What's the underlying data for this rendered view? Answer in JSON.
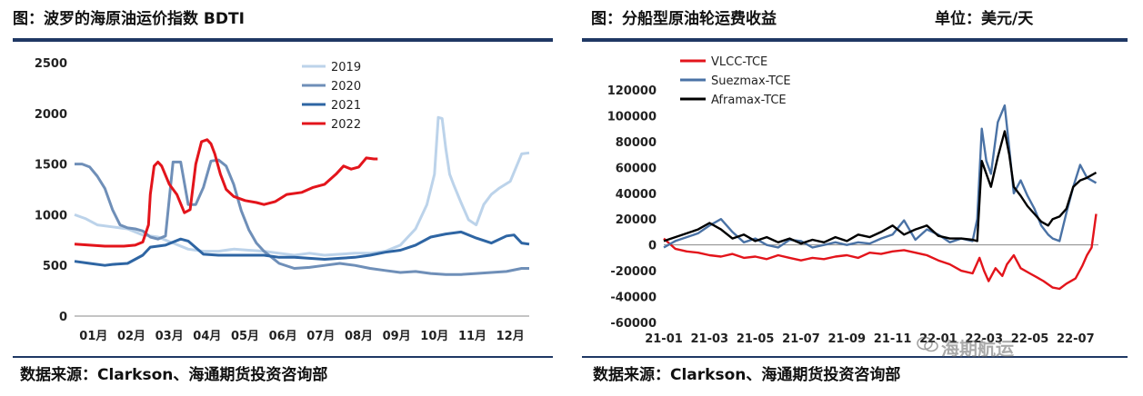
{
  "left": {
    "title": "图：波罗的海原油运价指数 BDTI",
    "source": "数据来源：Clarkson、海通期货投资咨询部"
  },
  "right": {
    "title": "图：分船型原油轮运费收益",
    "unit": "单位：美元/天",
    "source": "数据来源：Clarkson、海通期货投资咨询部"
  },
  "watermark": {
    "text": "海期航运",
    "icon": "wechat-icon"
  },
  "chart_data": [
    {
      "type": "line",
      "x_ticks": [
        "01月",
        "02月",
        "03月",
        "04月",
        "05月",
        "06月",
        "07月",
        "08月",
        "09月",
        "10月",
        "11月",
        "12月"
      ],
      "y_ticks": [
        "0",
        "500",
        "1000",
        "1500",
        "2000",
        "2500"
      ],
      "ylim": [
        0,
        2500
      ],
      "xlim": [
        1,
        13
      ],
      "legend_position": "top-center",
      "series": [
        {
          "name": "2019",
          "color": "#bcd3ea",
          "x": [
            1,
            1.3,
            1.6,
            2,
            2.4,
            2.8,
            3.2,
            3.6,
            4,
            4.4,
            4.8,
            5.2,
            5.6,
            6,
            6.4,
            6.8,
            7.2,
            7.6,
            8,
            8.4,
            8.8,
            9.2,
            9.6,
            10,
            10.3,
            10.5,
            10.6,
            10.7,
            10.8,
            10.9,
            11,
            11.2,
            11.4,
            11.6,
            11.8,
            12,
            12.2,
            12.5,
            12.8,
            13
          ],
          "y": [
            1000,
            960,
            900,
            880,
            860,
            800,
            780,
            720,
            660,
            640,
            640,
            660,
            650,
            640,
            620,
            600,
            620,
            600,
            610,
            620,
            620,
            640,
            700,
            860,
            1100,
            1400,
            1960,
            1950,
            1650,
            1400,
            1300,
            1120,
            950,
            900,
            1100,
            1200,
            1260,
            1330,
            1600,
            1610
          ]
        },
        {
          "name": "2020",
          "color": "#6f8fb8",
          "x": [
            1,
            1.2,
            1.4,
            1.6,
            1.8,
            2,
            2.2,
            2.4,
            2.6,
            2.8,
            3,
            3.2,
            3.4,
            3.6,
            3.8,
            4,
            4.2,
            4.4,
            4.6,
            4.8,
            5,
            5.2,
            5.4,
            5.6,
            5.8,
            6,
            6.4,
            6.8,
            7.2,
            7.6,
            8,
            8.4,
            8.8,
            9.2,
            9.6,
            10,
            10.4,
            10.8,
            11.2,
            11.6,
            12,
            12.4,
            12.8,
            13
          ],
          "y": [
            1500,
            1500,
            1470,
            1380,
            1260,
            1050,
            900,
            870,
            860,
            840,
            780,
            760,
            790,
            1520,
            1520,
            1100,
            1100,
            1270,
            1530,
            1540,
            1480,
            1300,
            1040,
            850,
            720,
            640,
            520,
            470,
            480,
            500,
            520,
            500,
            470,
            450,
            430,
            440,
            420,
            410,
            410,
            420,
            430,
            440,
            470,
            470
          ]
        },
        {
          "name": "2021",
          "color": "#2e65a3",
          "x": [
            1,
            1.4,
            1.8,
            2,
            2.4,
            2.8,
            3,
            3.4,
            3.8,
            4,
            4.4,
            4.8,
            5.2,
            5.6,
            6,
            6.4,
            6.8,
            7.2,
            7.6,
            8,
            8.4,
            8.8,
            9.2,
            9.6,
            10,
            10.4,
            10.8,
            11.2,
            11.6,
            12,
            12.4,
            12.6,
            12.8,
            13
          ],
          "y": [
            540,
            520,
            500,
            510,
            520,
            600,
            680,
            700,
            760,
            740,
            610,
            600,
            600,
            600,
            600,
            580,
            580,
            570,
            560,
            570,
            580,
            600,
            630,
            650,
            700,
            780,
            810,
            830,
            770,
            720,
            790,
            800,
            720,
            710
          ]
        },
        {
          "name": "2022",
          "color": "#e3141b",
          "x": [
            1,
            1.4,
            1.8,
            2,
            2.3,
            2.6,
            2.8,
            2.95,
            3,
            3.1,
            3.2,
            3.3,
            3.5,
            3.7,
            3.9,
            4.05,
            4.2,
            4.35,
            4.5,
            4.6,
            4.7,
            4.85,
            5,
            5.2,
            5.5,
            5.8,
            6,
            6.3,
            6.6,
            7,
            7.3,
            7.6,
            7.9,
            8.1,
            8.3,
            8.5,
            8.7,
            8.9,
            9
          ],
          "y": [
            710,
            700,
            690,
            690,
            690,
            700,
            730,
            900,
            1200,
            1480,
            1520,
            1480,
            1300,
            1200,
            1020,
            1050,
            1500,
            1720,
            1740,
            1700,
            1600,
            1400,
            1250,
            1180,
            1140,
            1120,
            1100,
            1130,
            1200,
            1220,
            1270,
            1300,
            1400,
            1480,
            1450,
            1470,
            1560,
            1550,
            1550
          ]
        }
      ]
    },
    {
      "type": "line",
      "x_ticks": [
        "21-01",
        "21-03",
        "21-05",
        "21-07",
        "21-09",
        "21-11",
        "22-01",
        "22-03",
        "22-05",
        "22-07"
      ],
      "y_ticks": [
        "-60000",
        "-40000",
        "-20000",
        "0",
        "20000",
        "40000",
        "60000",
        "80000",
        "100000",
        "120000"
      ],
      "ylim": [
        -60000,
        120000
      ],
      "xlim": [
        0,
        19
      ],
      "legend_position": "top-left",
      "series": [
        {
          "name": "VLCC-TCE",
          "color": "#e3141b",
          "x": [
            0,
            0.5,
            1,
            1.5,
            2,
            2.5,
            3,
            3.5,
            4,
            4.5,
            5,
            5.5,
            6,
            6.5,
            7,
            7.5,
            8,
            8.5,
            9,
            9.5,
            10,
            10.5,
            11,
            11.5,
            12,
            12.5,
            13,
            13.5,
            13.8,
            14,
            14.2,
            14.5,
            14.8,
            15,
            15.3,
            15.6,
            16,
            16.3,
            16.6,
            17,
            17.3,
            17.6,
            18,
            18.3,
            18.5,
            18.7,
            18.9
          ],
          "y": [
            5000,
            -3000,
            -5000,
            -6000,
            -8000,
            -9000,
            -7000,
            -10000,
            -9000,
            -11000,
            -8000,
            -10000,
            -12000,
            -10000,
            -11000,
            -9000,
            -8000,
            -10000,
            -6000,
            -7000,
            -5000,
            -4000,
            -6000,
            -8000,
            -12000,
            -15000,
            -20000,
            -22000,
            -10000,
            -20000,
            -28000,
            -18000,
            -24000,
            -15000,
            -8000,
            -18000,
            -22000,
            -25000,
            -28000,
            -33000,
            -34000,
            -30000,
            -26000,
            -16000,
            -8000,
            -2000,
            24000
          ]
        },
        {
          "name": "Suezmax-TCE",
          "color": "#4a72a5",
          "x": [
            0,
            0.5,
            1,
            1.5,
            2,
            2.5,
            3,
            3.5,
            4,
            4.5,
            5,
            5.5,
            6,
            6.5,
            7,
            7.5,
            8,
            8.5,
            9,
            9.5,
            10,
            10.5,
            11,
            11.5,
            12,
            12.5,
            13,
            13.5,
            13.7,
            13.9,
            14.1,
            14.3,
            14.6,
            14.9,
            15.1,
            15.3,
            15.6,
            15.9,
            16.2,
            16.5,
            16.8,
            17,
            17.3,
            17.6,
            17.9,
            18.2,
            18.5,
            18.9
          ],
          "y": [
            -2000,
            3000,
            6000,
            9000,
            15000,
            20000,
            10000,
            2000,
            5000,
            0,
            -2000,
            4000,
            3000,
            -2000,
            0,
            2000,
            0,
            2000,
            1000,
            5000,
            8000,
            19000,
            4000,
            12000,
            8000,
            2000,
            5000,
            3000,
            20000,
            90000,
            65000,
            55000,
            95000,
            108000,
            75000,
            40000,
            50000,
            38000,
            28000,
            15000,
            8000,
            5000,
            3000,
            25000,
            45000,
            62000,
            52000,
            48000
          ]
        },
        {
          "name": "Aframax-TCE",
          "color": "#000000",
          "x": [
            0,
            0.5,
            1,
            1.5,
            2,
            2.5,
            3,
            3.5,
            4,
            4.5,
            5,
            5.5,
            6,
            6.5,
            7,
            7.5,
            8,
            8.5,
            9,
            9.5,
            10,
            10.5,
            11,
            11.5,
            12,
            12.5,
            13,
            13.5,
            13.7,
            13.9,
            14.1,
            14.3,
            14.6,
            14.9,
            15.1,
            15.3,
            15.6,
            15.9,
            16.2,
            16.5,
            16.8,
            17,
            17.3,
            17.6,
            17.9,
            18.2,
            18.5,
            18.9
          ],
          "y": [
            3000,
            6000,
            9000,
            12000,
            17000,
            12000,
            5000,
            8000,
            3000,
            6000,
            2000,
            5000,
            1000,
            4000,
            2000,
            6000,
            3000,
            8000,
            6000,
            10000,
            15000,
            8000,
            12000,
            15000,
            7000,
            5000,
            5000,
            4000,
            3000,
            65000,
            55000,
            45000,
            68000,
            88000,
            70000,
            45000,
            38000,
            30000,
            24000,
            18000,
            15000,
            20000,
            22000,
            28000,
            45000,
            50000,
            52000,
            56000
          ]
        }
      ]
    }
  ]
}
